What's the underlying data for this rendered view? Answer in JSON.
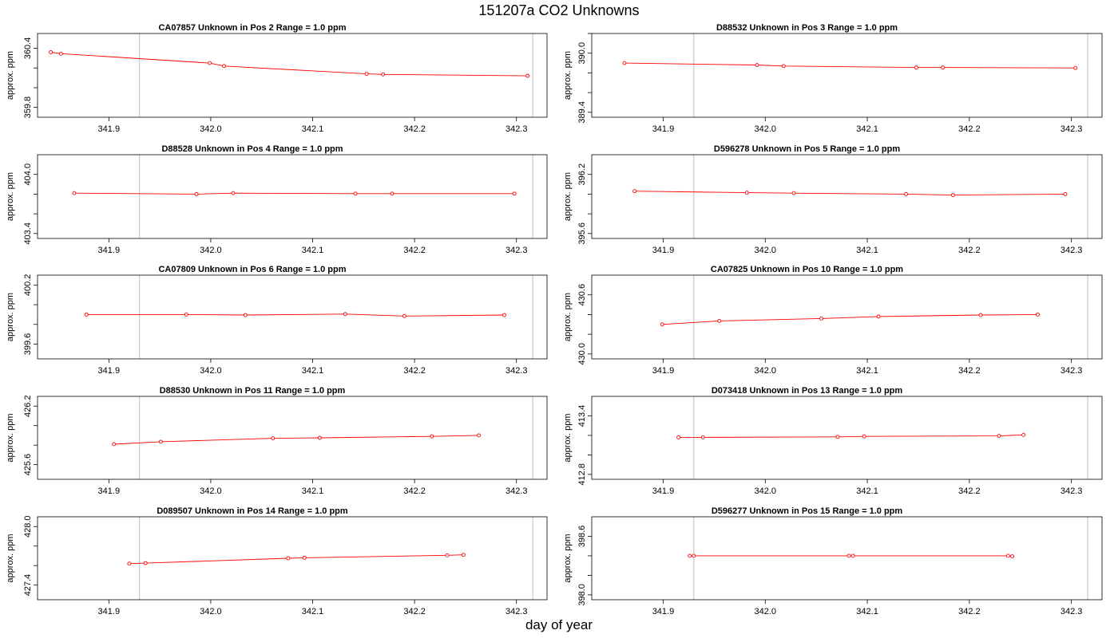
{
  "title": "151207a  CO2 Unknowns",
  "xlabel": "day of year",
  "chart_data": [
    {
      "type": "line",
      "panel_title": "CA07857    Unknown in Pos 2         Range = 1.0 ppm",
      "ylabel": "approx. ppm",
      "xlim": [
        341.83,
        342.33
      ],
      "ylim": [
        359.7,
        360.55
      ],
      "yticks": [
        359.8,
        360.4
      ],
      "yticks_unlabeled": [
        360.0,
        360.2
      ],
      "xticks": [
        341.9,
        342.0,
        342.1,
        342.2,
        342.3
      ],
      "vlines": [
        341.93,
        342.316
      ],
      "x": [
        341.843,
        341.853,
        341.999,
        342.013,
        342.153,
        342.169,
        342.311
      ],
      "y": [
        360.36,
        360.345,
        360.25,
        360.22,
        360.14,
        360.135,
        360.12
      ]
    },
    {
      "type": "line",
      "panel_title": "D88532    Unknown in Pos 3         Range = 1.0 ppm",
      "ylabel": "approx. ppm",
      "xlim": [
        341.83,
        342.33
      ],
      "ylim": [
        389.35,
        390.2
      ],
      "yticks": [
        389.4,
        390.0
      ],
      "yticks_unlabeled": [
        389.6,
        389.8,
        390.2
      ],
      "xticks": [
        341.9,
        342.0,
        342.1,
        342.2,
        342.3
      ],
      "vlines": [
        341.93,
        342.316
      ],
      "x": [
        341.862,
        341.992,
        342.018,
        342.148,
        342.174,
        342.304
      ],
      "y": [
        389.9,
        389.88,
        389.87,
        389.855,
        389.855,
        389.85
      ]
    },
    {
      "type": "line",
      "panel_title": "D88528    Unknown in Pos 4         Range = 1.0 ppm",
      "ylabel": "approx. ppm",
      "xlim": [
        341.83,
        342.33
      ],
      "ylim": [
        403.35,
        404.2
      ],
      "yticks": [
        403.4,
        404.0
      ],
      "yticks_unlabeled": [
        403.6,
        403.8
      ],
      "xticks": [
        341.9,
        342.0,
        342.1,
        342.2,
        342.3
      ],
      "vlines": [
        341.93,
        342.316
      ],
      "x": [
        341.866,
        341.986,
        342.022,
        342.142,
        342.178,
        342.298
      ],
      "y": [
        403.81,
        403.8,
        403.81,
        403.805,
        403.805,
        403.805
      ]
    },
    {
      "type": "line",
      "panel_title": "D596278    Unknown in Pos 5         Range = 1.0 ppm",
      "ylabel": "approx. ppm",
      "xlim": [
        341.83,
        342.33
      ],
      "ylim": [
        395.55,
        396.4
      ],
      "yticks": [
        395.6,
        396.2
      ],
      "yticks_unlabeled": [
        395.8,
        396.0
      ],
      "xticks": [
        341.9,
        342.0,
        342.1,
        342.2,
        342.3
      ],
      "vlines": [
        341.93,
        342.316
      ],
      "x": [
        341.872,
        341.982,
        342.028,
        342.138,
        342.184,
        342.294
      ],
      "y": [
        396.03,
        396.015,
        396.01,
        396.0,
        395.99,
        396.0
      ]
    },
    {
      "type": "line",
      "panel_title": "CA07809    Unknown in Pos 6         Range = 1.0 ppm",
      "ylabel": "approx. ppm",
      "xlim": [
        341.83,
        342.33
      ],
      "ylim": [
        399.45,
        400.3
      ],
      "yticks": [
        399.6,
        400.2
      ],
      "yticks_unlabeled": [
        399.8,
        400.0
      ],
      "xticks": [
        341.9,
        342.0,
        342.1,
        342.2,
        342.3
      ],
      "vlines": [
        341.93,
        342.316
      ],
      "x": [
        341.878,
        341.976,
        342.034,
        342.132,
        342.19,
        342.288
      ],
      "y": [
        399.9,
        399.9,
        399.895,
        399.905,
        399.885,
        399.895
      ]
    },
    {
      "type": "line",
      "panel_title": "CA07825    Unknown in Pos 10         Range = 1.0 ppm",
      "ylabel": "approx. ppm",
      "xlim": [
        341.83,
        342.33
      ],
      "ylim": [
        429.95,
        430.8
      ],
      "yticks": [
        430.0,
        430.6
      ],
      "yticks_unlabeled": [
        430.2,
        430.4
      ],
      "xticks": [
        341.9,
        342.0,
        342.1,
        342.2,
        342.3
      ],
      "vlines": [
        341.93,
        342.316
      ],
      "x": [
        341.899,
        341.955,
        342.055,
        342.111,
        342.211,
        342.267
      ],
      "y": [
        430.3,
        430.335,
        430.36,
        430.38,
        430.395,
        430.4
      ]
    },
    {
      "type": "line",
      "panel_title": "D88530    Unknown in Pos 11         Range = 1.0 ppm",
      "ylabel": "approx. ppm",
      "xlim": [
        341.83,
        342.33
      ],
      "ylim": [
        425.45,
        426.3
      ],
      "yticks": [
        425.6,
        426.2
      ],
      "yticks_unlabeled": [
        425.8,
        426.0
      ],
      "xticks": [
        341.9,
        342.0,
        342.1,
        342.2,
        342.3
      ],
      "vlines": [
        341.93,
        342.316
      ],
      "x": [
        341.905,
        341.951,
        342.061,
        342.107,
        342.217,
        342.263
      ],
      "y": [
        425.81,
        425.835,
        425.87,
        425.875,
        425.89,
        425.9
      ]
    },
    {
      "type": "line",
      "panel_title": "D073418    Unknown in Pos 13         Range = 1.0 ppm",
      "ylabel": "approx. ppm",
      "xlim": [
        341.83,
        342.33
      ],
      "ylim": [
        412.75,
        413.6
      ],
      "yticks": [
        412.8,
        413.4
      ],
      "yticks_unlabeled": [
        413.0,
        413.2
      ],
      "xticks": [
        341.9,
        342.0,
        342.1,
        342.2,
        342.3
      ],
      "vlines": [
        341.93,
        342.316
      ],
      "x": [
        341.915,
        341.939,
        342.071,
        342.097,
        342.229,
        342.253
      ],
      "y": [
        413.18,
        413.18,
        413.185,
        413.19,
        413.195,
        413.205
      ]
    },
    {
      "type": "line",
      "panel_title": "D089507    Unknown in Pos 14         Range = 1.0 ppm",
      "ylabel": "approx. ppm",
      "xlim": [
        341.83,
        342.33
      ],
      "ylim": [
        427.25,
        428.1
      ],
      "yticks": [
        427.4,
        428.0
      ],
      "yticks_unlabeled": [
        427.6,
        427.8
      ],
      "xticks": [
        341.9,
        342.0,
        342.1,
        342.2,
        342.3
      ],
      "vlines": [
        341.93,
        342.316
      ],
      "x": [
        341.92,
        341.936,
        342.076,
        342.092,
        342.232,
        342.248
      ],
      "y": [
        427.62,
        427.625,
        427.675,
        427.68,
        427.705,
        427.71
      ]
    },
    {
      "type": "line",
      "panel_title": "D596277    Unknown in Pos 15         Range = 1.0 ppm",
      "ylabel": "approx. ppm",
      "xlim": [
        341.83,
        342.33
      ],
      "ylim": [
        397.95,
        398.8
      ],
      "yticks": [
        398.0,
        398.6
      ],
      "yticks_unlabeled": [
        398.2,
        398.4
      ],
      "xticks": [
        341.9,
        342.0,
        342.1,
        342.2,
        342.3
      ],
      "vlines": [
        341.93,
        342.316
      ],
      "x": [
        341.926,
        341.93,
        342.082,
        342.086,
        342.238,
        342.242
      ],
      "y": [
        398.4,
        398.4,
        398.4,
        398.4,
        398.4,
        398.395
      ]
    }
  ],
  "colors": {
    "line": "#ff0000",
    "vline": "#c8c8c8",
    "axis": "#000000"
  }
}
